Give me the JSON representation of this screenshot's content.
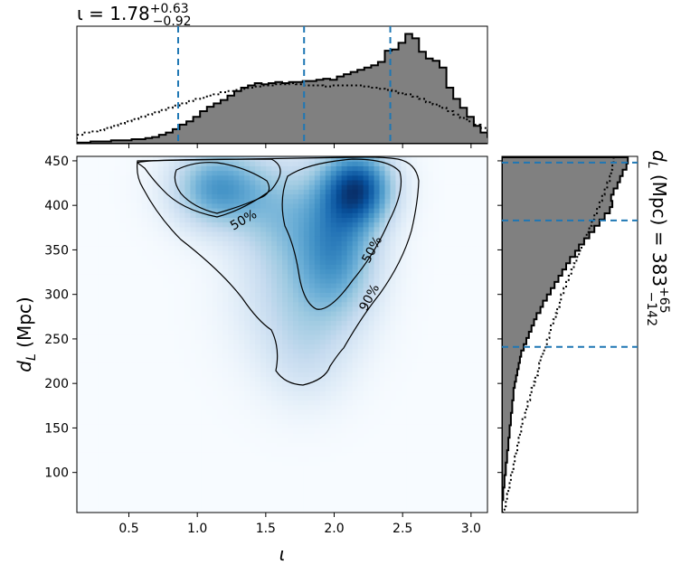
{
  "chart_data": {
    "type": "corner-plot",
    "panels": {
      "top_marginal": {
        "type": "histogram",
        "annotation": {
          "prefix": "ι = 1.78",
          "sup": "+0.63",
          "sub": "−0.92"
        },
        "x_range": [
          0.12,
          3.12
        ],
        "quantile_lines": [
          0.86,
          1.78,
          2.41
        ],
        "bin_edges_start": 0.12,
        "bin_width": 0.05,
        "posterior_density": [
          0.01,
          0.01,
          0.02,
          0.02,
          0.02,
          0.03,
          0.03,
          0.03,
          0.04,
          0.04,
          0.05,
          0.06,
          0.08,
          0.1,
          0.13,
          0.17,
          0.2,
          0.24,
          0.29,
          0.33,
          0.36,
          0.39,
          0.43,
          0.47,
          0.5,
          0.52,
          0.54,
          0.53,
          0.54,
          0.55,
          0.54,
          0.55,
          0.55,
          0.56,
          0.56,
          0.57,
          0.58,
          0.57,
          0.6,
          0.62,
          0.64,
          0.66,
          0.68,
          0.7,
          0.73,
          0.83,
          0.84,
          0.9,
          0.98,
          0.94,
          0.82,
          0.76,
          0.74,
          0.68,
          0.5,
          0.4,
          0.32,
          0.24,
          0.16,
          0.1,
          0.06,
          0.03
        ],
        "prior_density": [
          0.08,
          0.1,
          0.11,
          0.12,
          0.14,
          0.16,
          0.18,
          0.2,
          0.22,
          0.24,
          0.26,
          0.28,
          0.3,
          0.32,
          0.34,
          0.36,
          0.38,
          0.4,
          0.41,
          0.43,
          0.44,
          0.46,
          0.47,
          0.48,
          0.49,
          0.5,
          0.51,
          0.52,
          0.52,
          0.53,
          0.53,
          0.54,
          0.53,
          0.52,
          0.52,
          0.52,
          0.51,
          0.52,
          0.52,
          0.52,
          0.52,
          0.52,
          0.51,
          0.5,
          0.49,
          0.48,
          0.47,
          0.45,
          0.44,
          0.42,
          0.4,
          0.37,
          0.35,
          0.32,
          0.29,
          0.26,
          0.23,
          0.2,
          0.17,
          0.14,
          0.11,
          0.08
        ]
      },
      "joint": {
        "type": "2d-density",
        "x_range": [
          0.12,
          3.12
        ],
        "y_range": [
          55,
          455
        ],
        "ylabel_main": "d",
        "ylabel_sub": "L",
        "ylabel_unit": " (Mpc)",
        "xlabel": "ι",
        "x_ticks": [
          "0.5",
          "1.0",
          "1.5",
          "2.0",
          "2.5",
          "3.0"
        ],
        "y_ticks": [
          "100",
          "150",
          "200",
          "250",
          "300",
          "350",
          "400",
          "450"
        ],
        "contour_labels": [
          "50%",
          "50%",
          "90%"
        ],
        "blobs": [
          {
            "x": 1.15,
            "y": 420,
            "sx": 0.22,
            "sy": 30,
            "w": 0.7
          },
          {
            "x": 2.18,
            "y": 420,
            "sx": 0.17,
            "sy": 28,
            "w": 1.0
          },
          {
            "x": 2.02,
            "y": 360,
            "sx": 0.2,
            "sy": 55,
            "w": 0.7
          },
          {
            "x": 1.58,
            "y": 395,
            "sx": 0.22,
            "sy": 40,
            "w": 0.35
          },
          {
            "x": 1.72,
            "y": 300,
            "sx": 0.28,
            "sy": 55,
            "w": 0.3
          },
          {
            "x": 1.8,
            "y": 225,
            "sx": 0.2,
            "sy": 35,
            "w": 0.12
          }
        ],
        "colormap": "Blues"
      },
      "right_marginal": {
        "type": "histogram",
        "annotation": {
          "prefix_main": "d",
          "prefix_sub": "L",
          "prefix_rest": " (Mpc) = 383",
          "sup": "+65",
          "sub": "−142"
        },
        "y_range": [
          55,
          455
        ],
        "quantile_lines": [
          241,
          383,
          448
        ],
        "bin_edges_start": 55,
        "bin_width": 7,
        "posterior_density": [
          0.0,
          0.0,
          0.01,
          0.01,
          0.02,
          0.02,
          0.03,
          0.03,
          0.04,
          0.04,
          0.05,
          0.05,
          0.06,
          0.06,
          0.07,
          0.07,
          0.08,
          0.08,
          0.09,
          0.09,
          0.1,
          0.11,
          0.12,
          0.13,
          0.14,
          0.15,
          0.17,
          0.19,
          0.21,
          0.23,
          0.25,
          0.27,
          0.3,
          0.32,
          0.35,
          0.38,
          0.41,
          0.44,
          0.47,
          0.5,
          0.53,
          0.57,
          0.6,
          0.64,
          0.68,
          0.72,
          0.76,
          0.8,
          0.84,
          0.86,
          0.85,
          0.87,
          0.9,
          0.92,
          0.94,
          0.97,
          0.98
        ],
        "prior_density": [
          0.02,
          0.03,
          0.04,
          0.05,
          0.06,
          0.07,
          0.08,
          0.09,
          0.1,
          0.11,
          0.12,
          0.13,
          0.14,
          0.15,
          0.16,
          0.18,
          0.19,
          0.2,
          0.22,
          0.23,
          0.25,
          0.26,
          0.28,
          0.29,
          0.3,
          0.32,
          0.34,
          0.35,
          0.37,
          0.38,
          0.4,
          0.42,
          0.43,
          0.45,
          0.46,
          0.48,
          0.5,
          0.52,
          0.54,
          0.56,
          0.58,
          0.6,
          0.62,
          0.64,
          0.66,
          0.68,
          0.7,
          0.72,
          0.74,
          0.76,
          0.78,
          0.8,
          0.82,
          0.84,
          0.85,
          0.86,
          0.87
        ]
      }
    },
    "colors": {
      "histogram_fill": "#808080",
      "histogram_edge": "#000000",
      "quantile_line": "#1f77b4",
      "contour": "#000000"
    }
  }
}
